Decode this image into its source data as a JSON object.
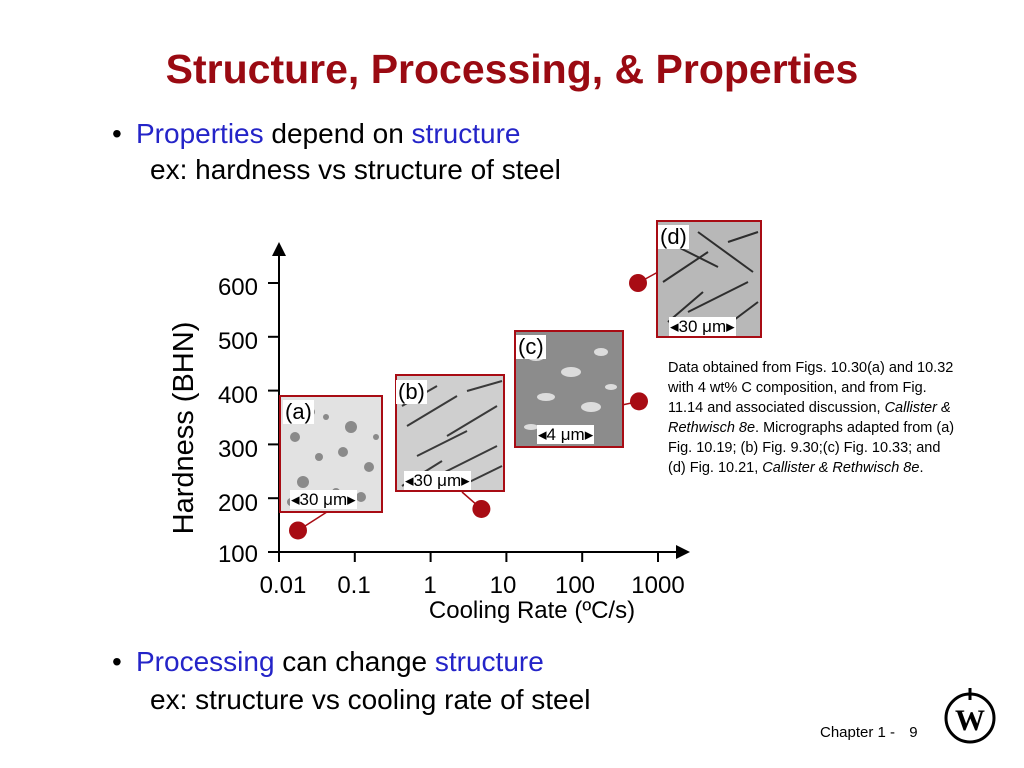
{
  "title": "Structure, Processing, & Properties",
  "bullet1": {
    "word1": "Properties",
    "mid": "depend on",
    "word2": "structure",
    "example": "ex:  hardness vs structure of steel"
  },
  "bullet2": {
    "word1": "Processing",
    "mid": "can change",
    "word2": "structure",
    "example": "ex:  structure vs cooling rate of steel"
  },
  "bullet_glyph": "•",
  "chart": {
    "ylabel": "Hardness (BHN)",
    "xlabel": "Cooling Rate (ºC/s)",
    "yticks": [
      "600",
      "500",
      "400",
      "300",
      "200",
      "100"
    ],
    "xticks": [
      "0.01",
      "0.1",
      "1",
      "10",
      "100",
      "1000"
    ]
  },
  "chart_data": {
    "type": "scatter",
    "xscale": "log",
    "x": [
      0.01,
      10,
      1000,
      1000
    ],
    "y": [
      140,
      180,
      380,
      600
    ],
    "ylim": [
      100,
      600
    ],
    "xlim": [
      0.01,
      1000
    ],
    "point_color": "#a80c14"
  },
  "micrographs": [
    {
      "label": "(a)",
      "scale": "30 μm"
    },
    {
      "label": "(b)",
      "scale": "30 μm"
    },
    {
      "label": "(c)",
      "scale": "4 μm"
    },
    {
      "label": "(d)",
      "scale": "30 μm"
    }
  ],
  "note": {
    "part1": "Data obtained from Figs. 10.30(a) and 10.32 with 4 wt% C composition, and from Fig. 11.14 and associated discussion, ",
    "ref1": "Callister & Rethwisch 8e",
    "part2": ". Micrographs adapted from (a) Fig. 10.19; (b) Fig. 9.30;(c) Fig. 10.33; and (d) Fig. 10.21, ",
    "ref2": "Callister & Rethwisch 8e",
    "part3": "."
  },
  "footer": {
    "chapter": "Chapter 1 -",
    "page": "9"
  },
  "logo_icon": "wiley-logo-icon"
}
